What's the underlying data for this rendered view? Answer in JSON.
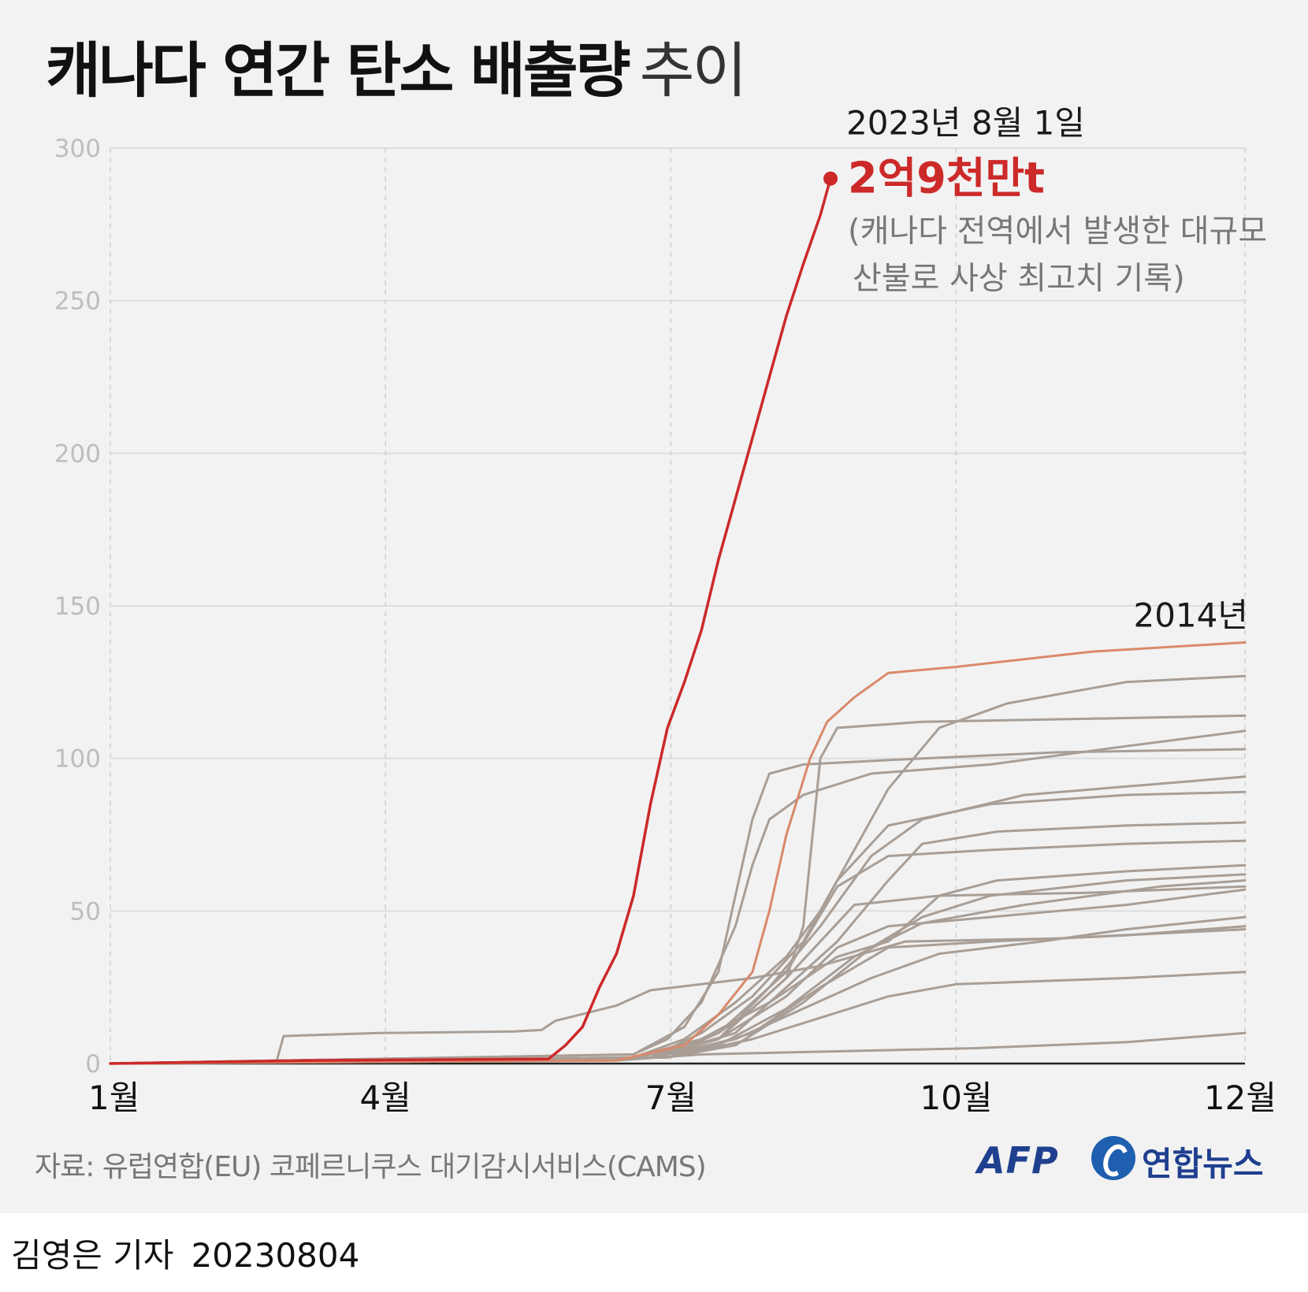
{
  "title": {
    "bold": "캐나다 연간 탄소 배출량",
    "light": "추이"
  },
  "annotations": {
    "peak_date": "2023년 8월 1일",
    "peak_value": "2억9천만t",
    "peak_note_line1": "(캐나다 전역에서 발생한 대규모",
    "peak_note_line2": "산불로 사상 최고치 기록)",
    "year_2014": "2014년"
  },
  "footer": {
    "source": "자료: 유럽연합(EU) 코페르니쿠스 대기감시서비스(CAMS)",
    "afp": "AFP",
    "yonhap": "연합뉴스",
    "reporter": "김영은 기자",
    "date": "20230804"
  },
  "colors": {
    "highlight_2023": "#cc2929",
    "highlight_2014": "#d9896b",
    "other_years": "#a89e96",
    "grid": "#dddddd"
  },
  "chart_data": {
    "type": "line",
    "x_unit": "day of year",
    "xlim": [
      1,
      335
    ],
    "ylim": [
      0,
      300
    ],
    "y_ticks": [
      0,
      50,
      100,
      150,
      200,
      250,
      300
    ],
    "x_ticks": [
      {
        "label": "1월",
        "value": 1
      },
      {
        "label": "4월",
        "value": 82
      },
      {
        "label": "7월",
        "value": 166
      },
      {
        "label": "10월",
        "value": 250
      },
      {
        "label": "12월",
        "value": 335
      }
    ],
    "grid": true,
    "series": [
      {
        "points": [
          [
            1,
            0
          ],
          [
            60,
            1
          ],
          [
            130,
            1.5
          ],
          [
            135,
            6
          ],
          [
            140,
            12
          ],
          [
            145,
            25
          ],
          [
            150,
            36
          ],
          [
            155,
            55
          ],
          [
            160,
            85
          ],
          [
            165,
            110
          ],
          [
            170,
            125
          ],
          [
            175,
            142
          ],
          [
            180,
            165
          ],
          [
            185,
            185
          ],
          [
            190,
            205
          ],
          [
            195,
            225
          ],
          [
            200,
            245
          ],
          [
            205,
            262
          ],
          [
            210,
            278
          ],
          [
            213,
            290
          ]
        ]
      },
      {
        "name": "2014년",
        "points": [
          [
            1,
            0
          ],
          [
            150,
            1
          ],
          [
            170,
            6
          ],
          [
            180,
            16
          ],
          [
            190,
            30
          ],
          [
            195,
            50
          ],
          [
            200,
            75
          ],
          [
            207,
            100
          ],
          [
            212,
            112
          ],
          [
            220,
            120
          ],
          [
            230,
            128
          ],
          [
            250,
            130
          ],
          [
            290,
            135
          ],
          [
            335,
            138
          ]
        ]
      },
      {
        "points": [
          [
            1,
            0
          ],
          [
            155,
            3
          ],
          [
            170,
            12
          ],
          [
            180,
            30
          ],
          [
            185,
            55
          ],
          [
            190,
            80
          ],
          [
            195,
            95
          ],
          [
            205,
            98
          ],
          [
            240,
            100
          ],
          [
            280,
            102
          ],
          [
            335,
            103
          ]
        ]
      },
      {
        "points": [
          [
            1,
            0
          ],
          [
            155,
            3
          ],
          [
            165,
            8
          ],
          [
            175,
            20
          ],
          [
            185,
            45
          ],
          [
            190,
            65
          ],
          [
            195,
            80
          ],
          [
            205,
            88
          ],
          [
            225,
            95
          ],
          [
            260,
            98
          ],
          [
            300,
            104
          ],
          [
            335,
            109
          ]
        ]
      },
      {
        "points": [
          [
            1,
            0
          ],
          [
            155,
            2
          ],
          [
            170,
            5
          ],
          [
            180,
            10
          ],
          [
            190,
            18
          ],
          [
            200,
            28
          ],
          [
            205,
            45
          ],
          [
            210,
            100
          ],
          [
            215,
            110
          ],
          [
            240,
            112
          ],
          [
            290,
            113
          ],
          [
            335,
            114
          ]
        ]
      },
      {
        "points": [
          [
            1,
            0
          ],
          [
            155,
            2
          ],
          [
            170,
            8
          ],
          [
            185,
            20
          ],
          [
            200,
            35
          ],
          [
            210,
            50
          ],
          [
            220,
            70
          ],
          [
            230,
            90
          ],
          [
            245,
            110
          ],
          [
            265,
            118
          ],
          [
            300,
            125
          ],
          [
            335,
            127
          ]
        ]
      },
      {
        "points": [
          [
            1,
            0
          ],
          [
            160,
            2
          ],
          [
            175,
            10
          ],
          [
            190,
            22
          ],
          [
            205,
            40
          ],
          [
            215,
            60
          ],
          [
            230,
            78
          ],
          [
            260,
            85
          ],
          [
            300,
            88
          ],
          [
            335,
            89
          ]
        ]
      },
      {
        "points": [
          [
            1,
            0
          ],
          [
            160,
            2
          ],
          [
            180,
            8
          ],
          [
            195,
            25
          ],
          [
            210,
            45
          ],
          [
            225,
            68
          ],
          [
            240,
            80
          ],
          [
            270,
            88
          ],
          [
            335,
            94
          ]
        ]
      },
      {
        "points": [
          [
            1,
            0
          ],
          [
            160,
            2
          ],
          [
            180,
            10
          ],
          [
            200,
            30
          ],
          [
            215,
            58
          ],
          [
            230,
            68
          ],
          [
            260,
            70
          ],
          [
            300,
            72
          ],
          [
            335,
            73
          ]
        ]
      },
      {
        "points": [
          [
            1,
            0
          ],
          [
            155,
            2
          ],
          [
            175,
            8
          ],
          [
            195,
            20
          ],
          [
            215,
            35
          ],
          [
            230,
            40
          ],
          [
            245,
            55
          ],
          [
            262,
            60
          ],
          [
            300,
            63
          ],
          [
            335,
            65
          ]
        ]
      },
      {
        "points": [
          [
            1,
            0
          ],
          [
            160,
            2
          ],
          [
            185,
            10
          ],
          [
            200,
            25
          ],
          [
            215,
            40
          ],
          [
            230,
            60
          ],
          [
            240,
            72
          ],
          [
            262,
            76
          ],
          [
            300,
            78
          ],
          [
            335,
            79
          ]
        ]
      },
      {
        "points": [
          [
            1,
            0
          ],
          [
            160,
            2
          ],
          [
            180,
            6
          ],
          [
            200,
            18
          ],
          [
            220,
            35
          ],
          [
            240,
            46
          ],
          [
            270,
            52
          ],
          [
            310,
            58
          ],
          [
            335,
            60
          ]
        ]
      },
      {
        "points": [
          [
            1,
            0
          ],
          [
            50,
            1
          ],
          [
            52,
            9
          ],
          [
            80,
            10
          ],
          [
            120,
            10.5
          ],
          [
            128,
            11
          ],
          [
            132,
            14
          ],
          [
            150,
            19
          ],
          [
            160,
            24
          ],
          [
            190,
            28
          ],
          [
            210,
            32
          ],
          [
            235,
            40
          ],
          [
            280,
            41
          ],
          [
            335,
            44
          ]
        ]
      },
      {
        "points": [
          [
            1,
            0
          ],
          [
            160,
            2
          ],
          [
            180,
            8
          ],
          [
            200,
            22
          ],
          [
            215,
            38
          ],
          [
            230,
            45
          ],
          [
            260,
            48
          ],
          [
            300,
            52
          ],
          [
            335,
            57
          ]
        ]
      },
      {
        "points": [
          [
            1,
            0
          ],
          [
            160,
            2
          ],
          [
            185,
            8
          ],
          [
            205,
            18
          ],
          [
            225,
            28
          ],
          [
            245,
            36
          ],
          [
            275,
            40
          ],
          [
            300,
            44
          ],
          [
            335,
            48
          ]
        ]
      },
      {
        "points": [
          [
            1,
            0
          ],
          [
            165,
            2
          ],
          [
            190,
            8
          ],
          [
            210,
            15
          ],
          [
            230,
            22
          ],
          [
            250,
            26
          ],
          [
            300,
            28
          ],
          [
            335,
            30
          ]
        ]
      },
      {
        "points": [
          [
            1,
            0
          ],
          [
            165,
            2
          ],
          [
            185,
            6
          ],
          [
            205,
            20
          ],
          [
            225,
            38
          ],
          [
            240,
            48
          ],
          [
            260,
            55
          ],
          [
            300,
            60
          ],
          [
            335,
            62
          ]
        ]
      },
      {
        "points": [
          [
            1,
            0
          ],
          [
            150,
            1
          ],
          [
            175,
            3
          ],
          [
            215,
            4
          ],
          [
            255,
            5
          ],
          [
            300,
            7
          ],
          [
            335,
            10
          ]
        ]
      },
      {
        "points": [
          [
            1,
            0
          ],
          [
            165,
            2
          ],
          [
            190,
            10
          ],
          [
            210,
            25
          ],
          [
            230,
            38
          ],
          [
            260,
            40
          ],
          [
            300,
            42
          ],
          [
            335,
            45
          ]
        ]
      },
      {
        "points": [
          [
            1,
            0
          ],
          [
            160,
            2
          ],
          [
            180,
            8
          ],
          [
            200,
            28
          ],
          [
            220,
            52
          ],
          [
            245,
            55
          ],
          [
            290,
            56
          ],
          [
            335,
            58
          ]
        ]
      }
    ]
  }
}
